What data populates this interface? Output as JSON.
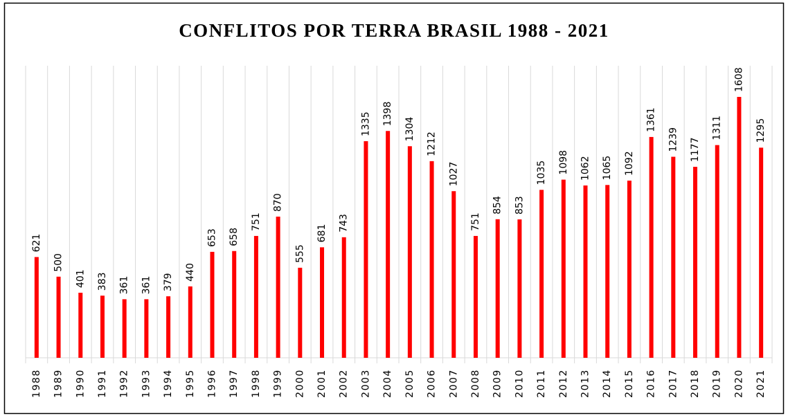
{
  "chart_data": {
    "type": "bar",
    "title": "CONFLITOS POR TERRA BRASIL 1988 - 2021",
    "categories": [
      "1988",
      "1989",
      "1990",
      "1991",
      "1992",
      "1993",
      "1994",
      "1995",
      "1996",
      "1997",
      "1998",
      "1999",
      "2000",
      "2001",
      "2002",
      "2003",
      "2004",
      "2005",
      "2006",
      "2007",
      "2008",
      "2009",
      "2010",
      "2011",
      "2012",
      "2013",
      "2014",
      "2015",
      "2016",
      "2017",
      "2018",
      "2019",
      "2020",
      "2021"
    ],
    "values": [
      621,
      500,
      401,
      383,
      361,
      361,
      379,
      440,
      653,
      658,
      751,
      870,
      555,
      681,
      743,
      1335,
      1398,
      1304,
      1212,
      1027,
      751,
      854,
      853,
      1035,
      1098,
      1062,
      1065,
      1092,
      1361,
      1239,
      1177,
      1311,
      1608,
      1295
    ],
    "color": "#ff0000",
    "ylim": [
      0,
      1800
    ]
  }
}
